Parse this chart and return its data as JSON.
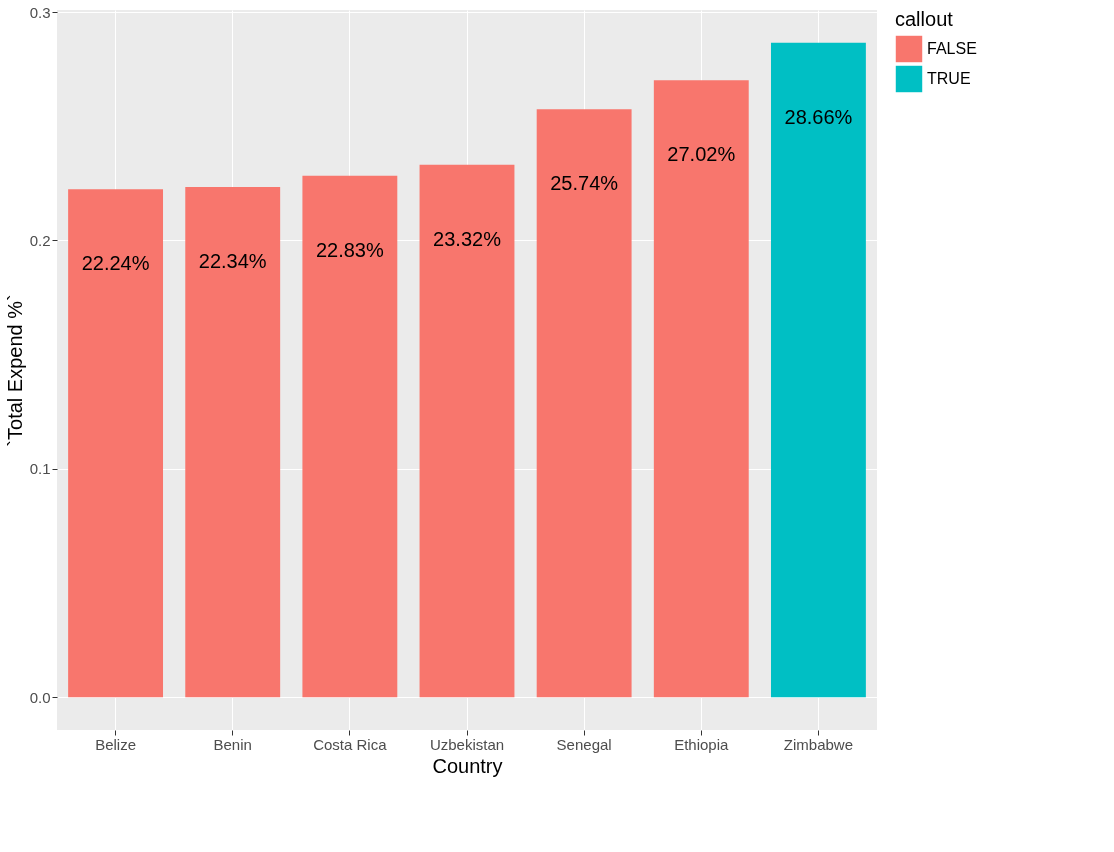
{
  "chart_data": {
    "type": "bar",
    "xlabel": "Country",
    "ylabel": "`Total Expend %`",
    "legend_title": "callout",
    "categories": [
      "Belize",
      "Benin",
      "Costa Rica",
      "Uzbekistan",
      "Senegal",
      "Ethiopia",
      "Zimbabwe"
    ],
    "series": [
      {
        "name": "FALSE",
        "color": "#f8766d",
        "values": [
          0.2224,
          0.2234,
          0.2283,
          0.2332,
          0.2574,
          0.2702,
          null
        ],
        "value_labels": [
          "22.24%",
          "22.34%",
          "22.83%",
          "23.32%",
          "25.74%",
          "27.02%",
          null
        ]
      },
      {
        "name": "TRUE",
        "color": "#00bfc4",
        "values": [
          null,
          null,
          null,
          null,
          null,
          null,
          0.2866
        ],
        "value_labels": [
          null,
          null,
          null,
          null,
          null,
          null,
          "28.66%"
        ]
      }
    ],
    "ylim": [
      -0.0143,
      0.3009
    ],
    "yticks": [
      {
        "value": 0,
        "label": "0.0"
      },
      {
        "value": 0.1,
        "label": "0.1"
      },
      {
        "value": 0.2,
        "label": "0.2"
      },
      {
        "value": 0.3,
        "label": "0.3"
      }
    ],
    "grid": true,
    "legend": "right"
  }
}
